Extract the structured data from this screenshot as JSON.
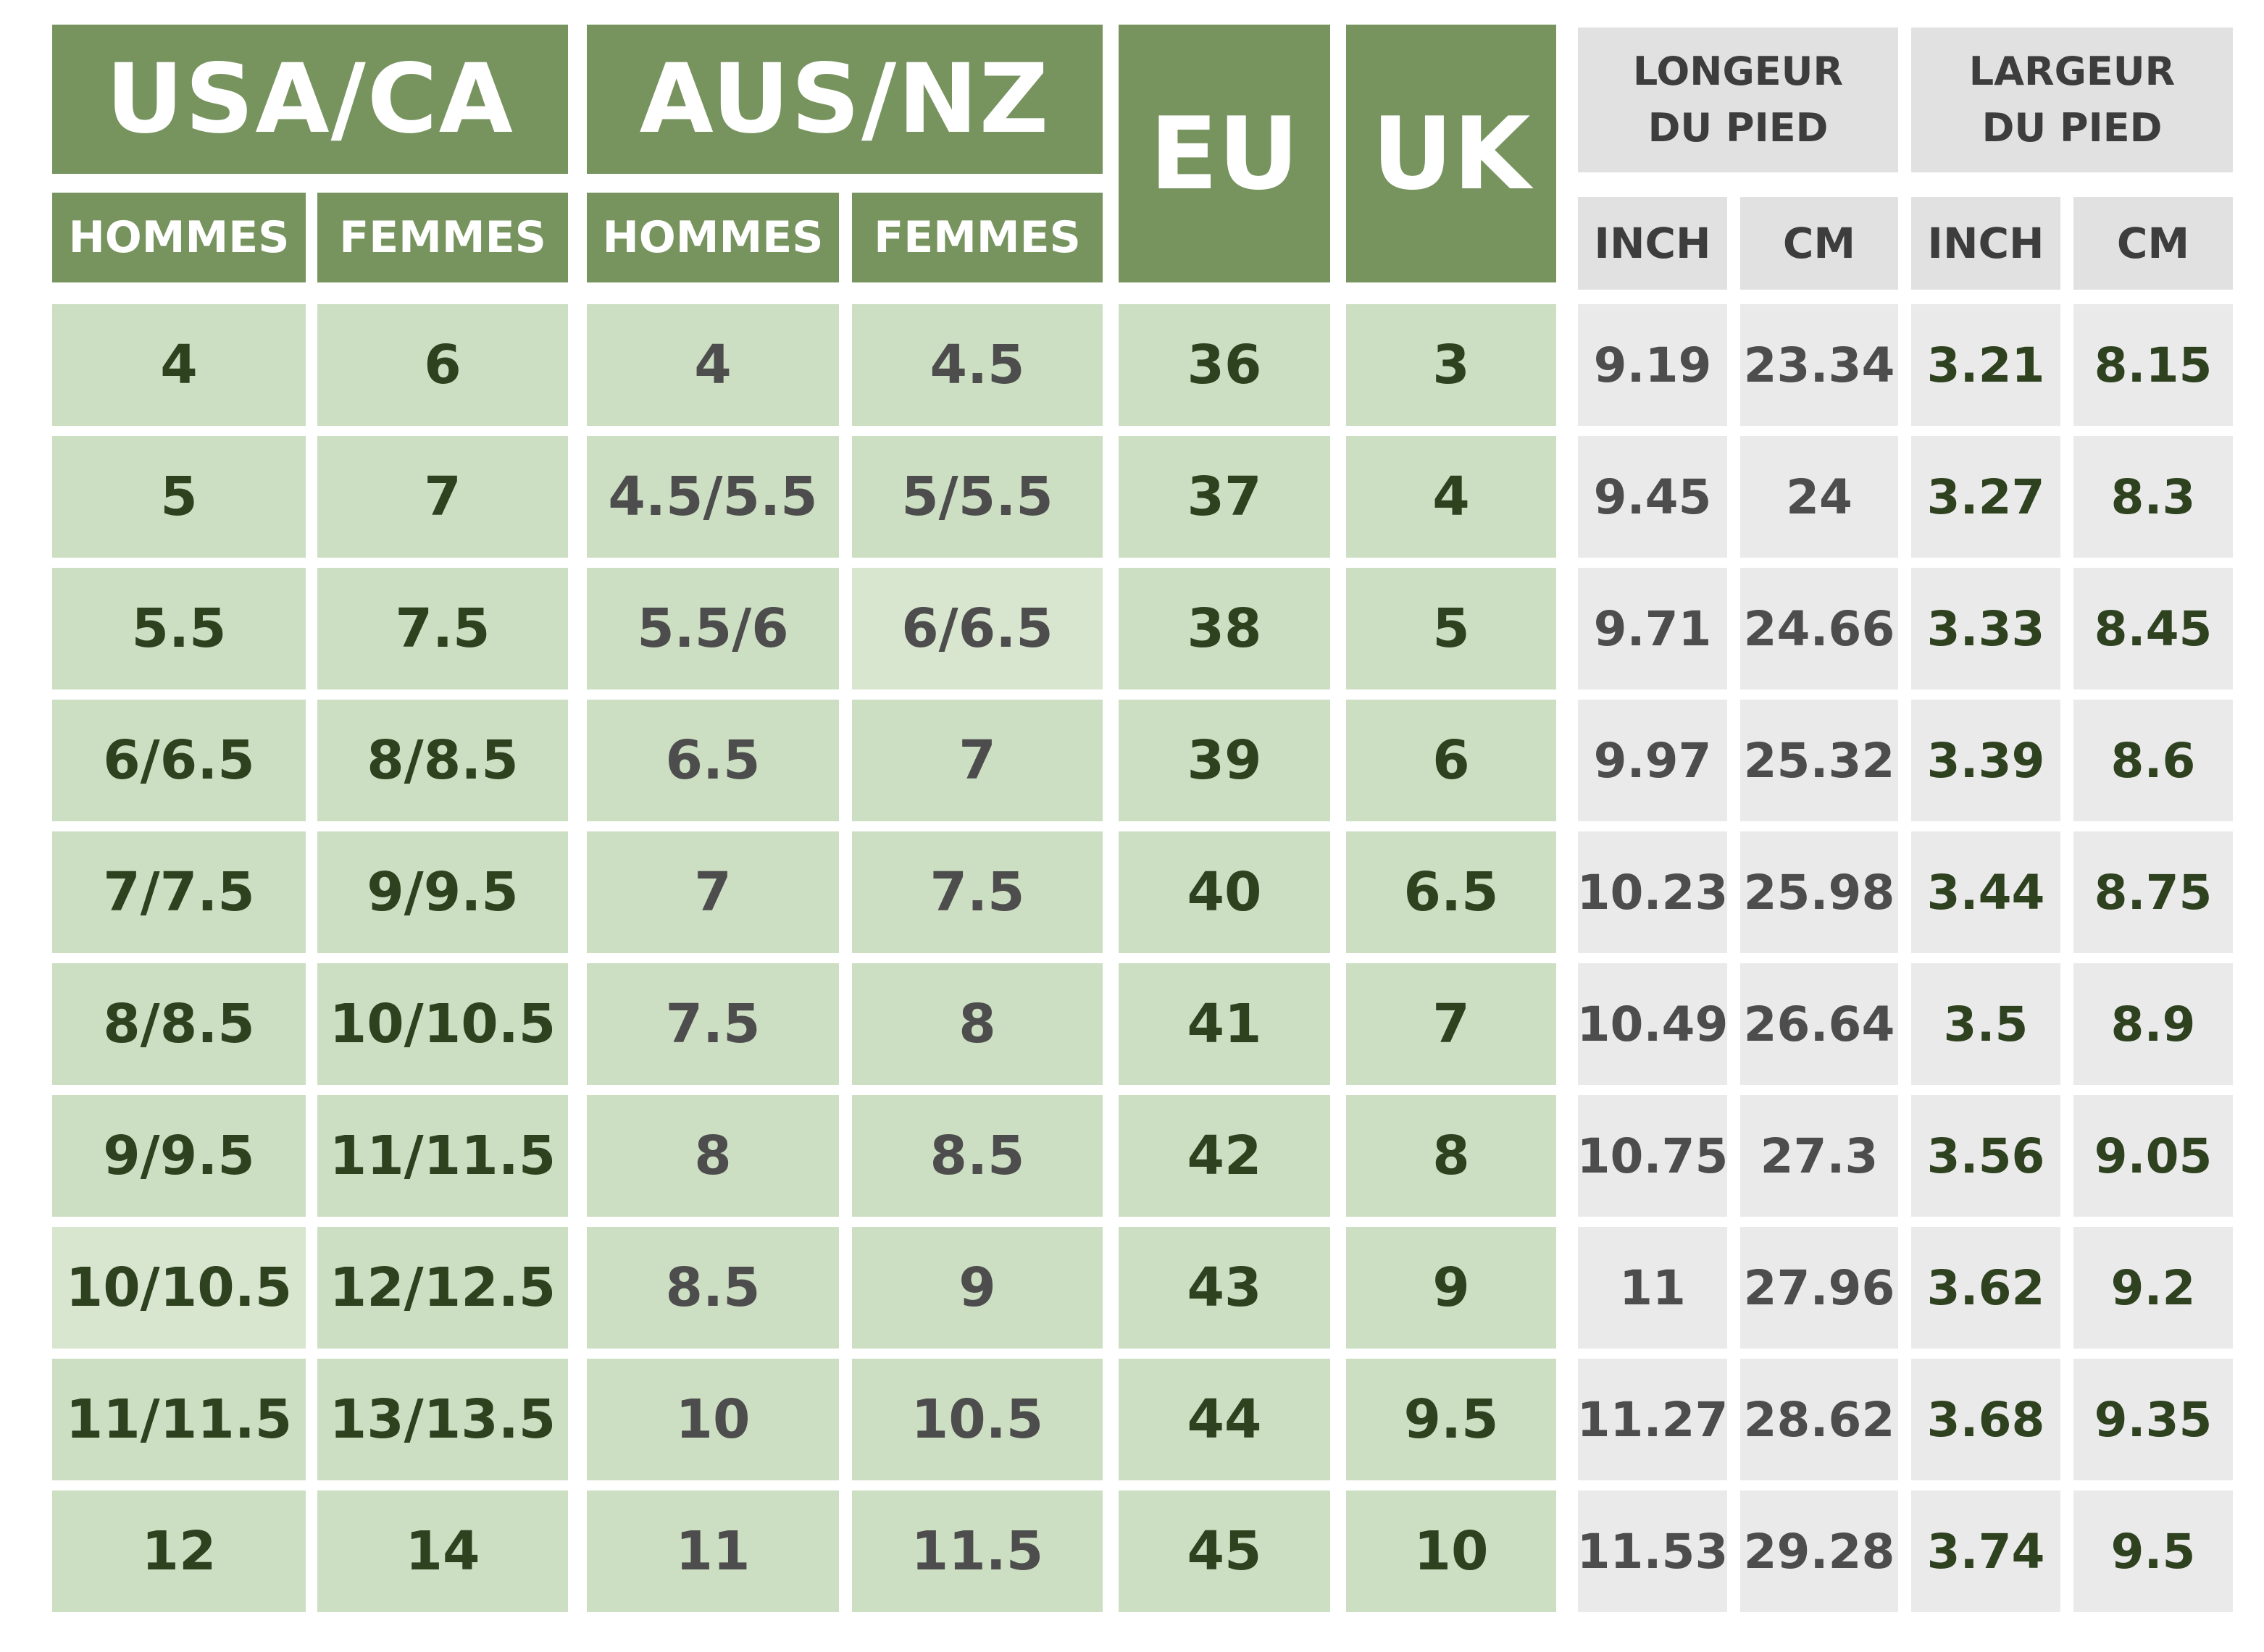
{
  "header": {
    "usa_ca": "USA/CA",
    "aus_nz": "AUS/NZ",
    "eu": "EU",
    "uk": "UK",
    "usa_men": "HOMMES",
    "usa_women": "FEMMES",
    "aus_men": "HOMMES",
    "aus_women": "FEMMES",
    "foot_length": "LONGEUR DU PIED",
    "foot_width": "LARGEUR DU PIED",
    "len_inch": "INCH",
    "len_cm": "CM",
    "wid_inch": "INCH",
    "wid_cm": "CM"
  },
  "rows": [
    {
      "usa_m": "4",
      "usa_w": "6",
      "aus_m": "4",
      "aus_w": "4.5",
      "eu": "36",
      "uk": "3",
      "len_in": "9.19",
      "len_cm": "23.34",
      "wid_in": "3.21",
      "wid_cm": "8.15"
    },
    {
      "usa_m": "5",
      "usa_w": "7",
      "aus_m": "4.5/5.5",
      "aus_w": "5/5.5",
      "eu": "37",
      "uk": "4",
      "len_in": "9.45",
      "len_cm": "24",
      "wid_in": "3.27",
      "wid_cm": "8.3"
    },
    {
      "usa_m": "5.5",
      "usa_w": "7.5",
      "aus_m": "5.5/6",
      "aus_w": "6/6.5",
      "eu": "38",
      "uk": "5",
      "len_in": "9.71",
      "len_cm": "24.66",
      "wid_in": "3.33",
      "wid_cm": "8.45"
    },
    {
      "usa_m": "6/6.5",
      "usa_w": "8/8.5",
      "aus_m": "6.5",
      "aus_w": "7",
      "eu": "39",
      "uk": "6",
      "len_in": "9.97",
      "len_cm": "25.32",
      "wid_in": "3.39",
      "wid_cm": "8.6"
    },
    {
      "usa_m": "7/7.5",
      "usa_w": "9/9.5",
      "aus_m": "7",
      "aus_w": "7.5",
      "eu": "40",
      "uk": "6.5",
      "len_in": "10.23",
      "len_cm": "25.98",
      "wid_in": "3.44",
      "wid_cm": "8.75"
    },
    {
      "usa_m": "8/8.5",
      "usa_w": "10/10.5",
      "aus_m": "7.5",
      "aus_w": "8",
      "eu": "41",
      "uk": "7",
      "len_in": "10.49",
      "len_cm": "26.64",
      "wid_in": "3.5",
      "wid_cm": "8.9"
    },
    {
      "usa_m": "9/9.5",
      "usa_w": "11/11.5",
      "aus_m": "8",
      "aus_w": "8.5",
      "eu": "42",
      "uk": "8",
      "len_in": "10.75",
      "len_cm": "27.3",
      "wid_in": "3.56",
      "wid_cm": "9.05"
    },
    {
      "usa_m": "10/10.5",
      "usa_w": "12/12.5",
      "aus_m": "8.5",
      "aus_w": "9",
      "eu": "43",
      "uk": "9",
      "len_in": "11",
      "len_cm": "27.96",
      "wid_in": "3.62",
      "wid_cm": "9.2"
    },
    {
      "usa_m": "11/11.5",
      "usa_w": "13/13.5",
      "aus_m": "10",
      "aus_w": "10.5",
      "eu": "44",
      "uk": "9.5",
      "len_in": "11.27",
      "len_cm": "28.62",
      "wid_in": "3.68",
      "wid_cm": "9.35"
    },
    {
      "usa_m": "12",
      "usa_w": "14",
      "aus_m": "11",
      "aus_w": "11.5",
      "eu": "45",
      "uk": "10",
      "len_in": "11.53",
      "len_cm": "29.28",
      "wid_in": "3.74",
      "wid_cm": "9.5"
    }
  ],
  "colors": {
    "header_green": "#77945f",
    "cell_green": "#ccdfc2",
    "cell_grey": "#eaeaea",
    "header_grey": "#e1e1e1",
    "text_dark_green": "#2f4220",
    "text_grey": "#4d4d4d"
  }
}
